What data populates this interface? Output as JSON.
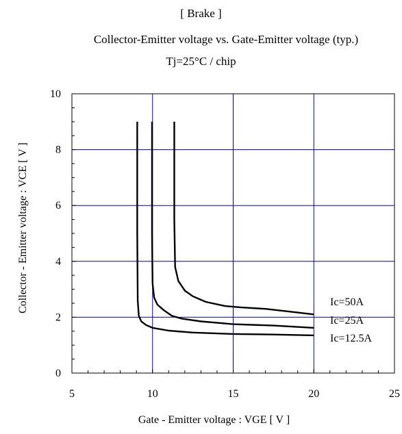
{
  "title": "[ Brake ]",
  "subtitle": "Collector-Emitter voltage  vs. Gate-Emitter voltage (typ.)",
  "condition": "Tj=25°C / chip",
  "chart_data": {
    "type": "line",
    "title": "[ Brake ]",
    "subtitle": "Collector-Emitter voltage  vs. Gate-Emitter voltage (typ.)",
    "condition": "Tj=25°C / chip",
    "xlabel": "Gate - Emitter voltage  :  VGE  [ V ]",
    "ylabel": "Collector - Emitter voltage  :  VCE  [ V ]",
    "xlim": [
      5,
      25
    ],
    "ylim": [
      0,
      10
    ],
    "xticks": [
      "5",
      "10",
      "15",
      "20",
      "25"
    ],
    "yticks": [
      "0",
      "2",
      "4",
      "6",
      "8",
      "10"
    ],
    "grid": true,
    "grid_color": "#0000cc",
    "line_color": "#000000",
    "series": [
      {
        "name": "Ic=50A",
        "x": [
          11.35,
          11.35,
          11.4,
          11.6,
          12.0,
          12.5,
          13.3,
          14.5,
          15.5,
          17.0,
          18.5,
          20.0
        ],
        "y": [
          9.0,
          5.5,
          3.8,
          3.3,
          2.95,
          2.75,
          2.55,
          2.4,
          2.35,
          2.3,
          2.2,
          2.1
        ]
      },
      {
        "name": "Ic=25A",
        "x": [
          9.97,
          9.97,
          10.0,
          10.1,
          10.3,
          10.7,
          11.2,
          11.8,
          13.0,
          15.0,
          17.5,
          20.0
        ],
        "y": [
          9.0,
          5.0,
          3.2,
          2.7,
          2.45,
          2.25,
          2.05,
          1.95,
          1.85,
          1.75,
          1.7,
          1.62
        ]
      },
      {
        "name": "Ic=12.5A",
        "x": [
          9.05,
          9.05,
          9.08,
          9.15,
          9.3,
          9.6,
          10.0,
          11.0,
          12.5,
          15.0,
          17.5,
          20.0
        ],
        "y": [
          9.0,
          5.0,
          2.6,
          2.05,
          1.85,
          1.72,
          1.62,
          1.52,
          1.45,
          1.4,
          1.38,
          1.35
        ]
      }
    ]
  }
}
